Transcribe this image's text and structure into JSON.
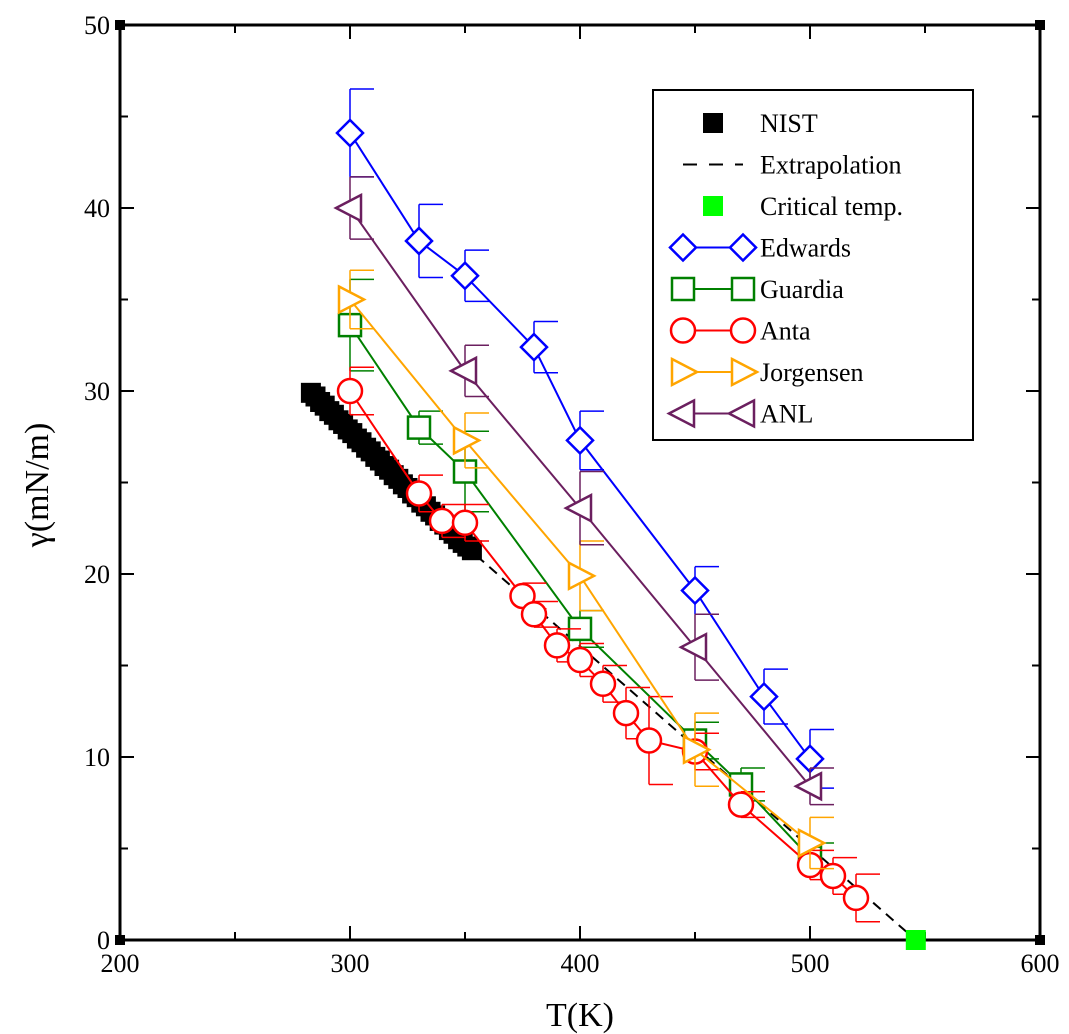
{
  "chart_data": {
    "type": "scatter",
    "title": "",
    "xlabel": "T(K)",
    "ylabel": "γ(mN/m)",
    "xlim": [
      200,
      600
    ],
    "ylim": [
      0,
      50
    ],
    "x_ticks": [
      200,
      300,
      400,
      500,
      600
    ],
    "y_ticks": [
      0,
      10,
      20,
      30,
      40,
      50
    ],
    "grid": false,
    "legend_position": "top-right",
    "series": [
      {
        "name": "NIST",
        "style": "filled-square",
        "color": "#000000",
        "x": [
          283,
          285,
          287,
          289,
          291,
          293,
          295,
          297,
          299,
          301,
          303,
          305,
          307,
          309,
          311,
          313,
          315,
          317,
          319,
          321,
          323,
          325,
          327,
          329,
          331,
          333,
          335,
          337,
          339,
          341,
          343,
          345,
          347,
          349,
          351,
          353
        ],
        "y": [
          29.9,
          29.7,
          29.4,
          29.2,
          28.9,
          28.7,
          28.4,
          28.2,
          27.9,
          27.7,
          27.4,
          27.2,
          26.9,
          26.7,
          26.4,
          26.2,
          25.9,
          25.7,
          25.4,
          25.2,
          24.9,
          24.7,
          24.4,
          24.2,
          23.9,
          23.7,
          23.4,
          23.2,
          22.9,
          22.7,
          22.4,
          22.2,
          21.9,
          21.7,
          21.5,
          21.3
        ]
      },
      {
        "name": "Extrapolation",
        "style": "dashed-line",
        "color": "#000000",
        "x": [
          355,
          546
        ],
        "y": [
          21.0,
          0
        ]
      },
      {
        "name": "Critical temp.",
        "style": "filled-square",
        "color": "#00ff00",
        "x": [
          546
        ],
        "y": [
          0
        ]
      },
      {
        "name": "Edwards",
        "style": "diamond",
        "color": "#0000ff",
        "x": [
          300,
          330,
          350,
          380,
          400,
          450,
          480,
          500
        ],
        "y": [
          44.1,
          38.2,
          36.3,
          32.4,
          27.3,
          19.1,
          13.3,
          9.9
        ],
        "err": [
          2.4,
          2.0,
          1.4,
          1.4,
          1.6,
          1.3,
          1.5,
          1.6
        ]
      },
      {
        "name": "Guardia",
        "style": "square",
        "color": "#008000",
        "x": [
          300,
          330,
          350,
          400,
          450,
          470,
          500
        ],
        "y": [
          33.6,
          28.0,
          25.6,
          17.0,
          10.9,
          8.5,
          4.5
        ],
        "err": [
          2.5,
          0.9,
          2.2,
          1.0,
          1.0,
          0.9,
          0.8
        ]
      },
      {
        "name": "Anta",
        "style": "circle",
        "color": "#ff0000",
        "x": [
          300,
          330,
          340,
          350,
          375,
          380,
          390,
          400,
          410,
          420,
          430,
          450,
          470,
          500,
          510,
          520
        ],
        "y": [
          30.0,
          24.4,
          22.9,
          22.8,
          18.8,
          17.8,
          16.1,
          15.3,
          14.0,
          12.4,
          10.9,
          10.3,
          7.4,
          4.1,
          3.5,
          2.3
        ],
        "err": [
          1.3,
          1.0,
          0.9,
          1.0,
          0.7,
          0.7,
          0.9,
          0.9,
          1.0,
          1.4,
          2.4,
          1.0,
          0.7,
          0.8,
          1.0,
          1.3
        ]
      },
      {
        "name": "Jorgensen",
        "style": "triangle-right",
        "color": "#ffa500",
        "x": [
          300,
          350,
          400,
          450,
          500
        ],
        "y": [
          35.0,
          27.3,
          19.9,
          10.4,
          5.3
        ],
        "err": [
          1.6,
          1.5,
          1.9,
          2.0,
          1.4
        ]
      },
      {
        "name": "ANL",
        "style": "triangle-left",
        "color": "#6b1f5f",
        "x": [
          300,
          350,
          400,
          450,
          500
        ],
        "y": [
          40.0,
          31.1,
          23.6,
          16.0,
          8.4
        ],
        "err": [
          1.7,
          1.4,
          2.0,
          1.8,
          1.0
        ]
      }
    ]
  }
}
